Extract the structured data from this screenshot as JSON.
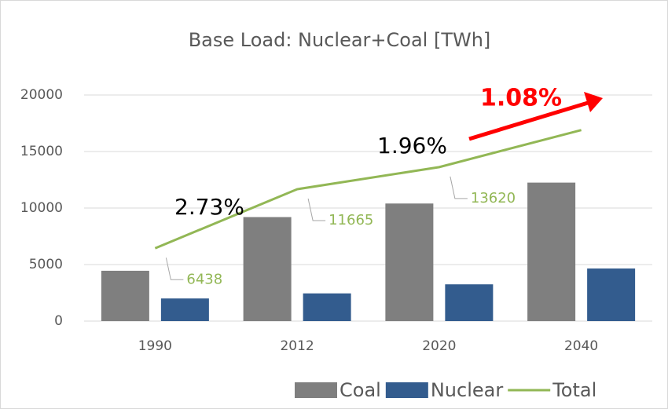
{
  "chart_data": {
    "type": "bar",
    "title": "Base Load: Nuclear+Coal [TWh]",
    "categories": [
      "1990",
      "2012",
      "2020",
      "2040"
    ],
    "series": [
      {
        "name": "Coal",
        "color": "#7f7f7f",
        "values": [
          4450,
          9200,
          10400,
          12250
        ]
      },
      {
        "name": "Nuclear",
        "color": "#335c8e",
        "values": [
          2000,
          2450,
          3250,
          4650
        ]
      },
      {
        "name": "Total",
        "type": "line",
        "color": "#92b755",
        "values": [
          6438,
          11665,
          13620,
          16900
        ],
        "value_labels": [
          "6438",
          "11665",
          "13620",
          null
        ]
      }
    ],
    "annotations": [
      "2.73%",
      "1.96%",
      "1.08%"
    ],
    "ylim": [
      0,
      20000
    ],
    "yticks": [
      0,
      5000,
      10000,
      15000,
      20000
    ],
    "grid": true,
    "legend": "bottom"
  }
}
